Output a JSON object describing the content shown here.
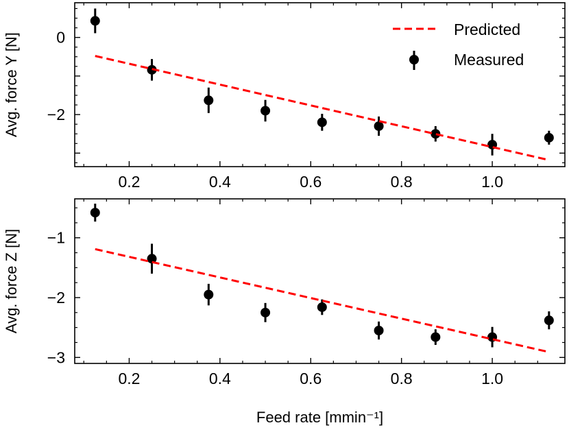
{
  "chart_data": [
    {
      "type": "scatter",
      "ylabel": "Avg. force Y [N]",
      "xlabel": "",
      "xlim": [
        0.08,
        1.16
      ],
      "ylim": [
        -3.35,
        0.9
      ],
      "xticks": [
        0.2,
        0.4,
        0.6,
        0.8,
        1.0
      ],
      "xtick_labels": [
        "0.2",
        "0.4",
        "0.6",
        "0.8",
        "1.0"
      ],
      "yticks": [
        0,
        -2
      ],
      "ytick_labels": [
        "0",
        "−2"
      ],
      "grid": false,
      "legend": {
        "placement": "top-right",
        "entries": [
          {
            "name": "Predicted",
            "style": "dashed-line",
            "color": "#ff0000"
          },
          {
            "name": "Measured",
            "style": "marker-errorbar",
            "color": "#000000"
          }
        ]
      },
      "series": [
        {
          "name": "Measured",
          "kind": "errorbar",
          "color": "#000000",
          "x": [
            0.125,
            0.25,
            0.375,
            0.5,
            0.625,
            0.75,
            0.875,
            1.0,
            1.125
          ],
          "y": [
            0.43,
            -0.84,
            -1.63,
            -1.9,
            -2.2,
            -2.3,
            -2.5,
            -2.78,
            -2.6
          ],
          "yerr": [
            0.32,
            0.28,
            0.33,
            0.28,
            0.22,
            0.25,
            0.2,
            0.28,
            0.18
          ]
        },
        {
          "name": "Predicted",
          "kind": "dashed-line",
          "color": "#ff0000",
          "x": [
            0.125,
            1.125
          ],
          "y": [
            -0.48,
            -3.18
          ]
        }
      ]
    },
    {
      "type": "scatter",
      "ylabel": "Avg. force Z [N]",
      "xlabel": "Feed rate [mmin⁻¹]",
      "xlim": [
        0.08,
        1.16
      ],
      "ylim": [
        -3.1,
        -0.35
      ],
      "xticks": [
        0.2,
        0.4,
        0.6,
        0.8,
        1.0
      ],
      "xtick_labels": [
        "0.2",
        "0.4",
        "0.6",
        "0.8",
        "1.0"
      ],
      "yticks": [
        -1,
        -2,
        -3
      ],
      "ytick_labels": [
        "−1",
        "−2",
        "−3"
      ],
      "grid": false,
      "series": [
        {
          "name": "Measured",
          "kind": "errorbar",
          "color": "#000000",
          "x": [
            0.125,
            0.25,
            0.375,
            0.5,
            0.625,
            0.75,
            0.875,
            1.0,
            1.125
          ],
          "y": [
            -0.58,
            -1.35,
            -1.95,
            -2.25,
            -2.16,
            -2.55,
            -2.66,
            -2.66,
            -2.38
          ],
          "yerr": [
            0.15,
            0.25,
            0.18,
            0.16,
            0.13,
            0.15,
            0.13,
            0.17,
            0.15
          ]
        },
        {
          "name": "Predicted",
          "kind": "dashed-line",
          "color": "#ff0000",
          "x": [
            0.125,
            1.125
          ],
          "y": [
            -1.19,
            -2.91
          ]
        }
      ]
    }
  ]
}
